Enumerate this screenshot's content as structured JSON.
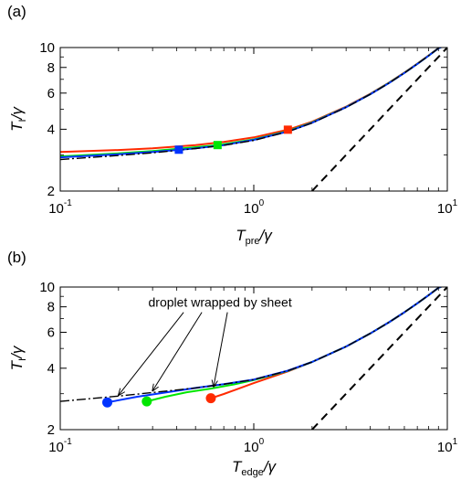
{
  "chart_data": [
    {
      "panel_label": "(a)",
      "type": "line",
      "xscale": "log",
      "yscale": "log",
      "xlim": [
        0.1,
        10
      ],
      "ylim": [
        2,
        10
      ],
      "xticks": [
        {
          "value": 0.1,
          "base": "10",
          "exp": "-1"
        },
        {
          "value": 1,
          "base": "10",
          "exp": "0"
        },
        {
          "value": 10,
          "base": "10",
          "exp": "1"
        }
      ],
      "yticks": [
        {
          "value": 2,
          "label": "2"
        },
        {
          "value": 4,
          "label": "4"
        },
        {
          "value": 6,
          "label": "6"
        },
        {
          "value": 8,
          "label": "8"
        },
        {
          "value": 10,
          "label": "10"
        }
      ],
      "xlabel": {
        "main": "T",
        "sub": "pre",
        "tail": "/γ"
      },
      "ylabel": {
        "main": "T",
        "sub": "I",
        "tail": "/γ"
      },
      "series": [
        {
          "color": "#ff2a00",
          "style": "solid",
          "marker": "square",
          "x": [
            0.1,
            0.2,
            0.3,
            0.5,
            0.7,
            1.0,
            1.5,
            2.0,
            3.0,
            4.0,
            5.0,
            6.0,
            7.0,
            8.0,
            9.0,
            10.0
          ],
          "y": [
            3.1,
            3.17,
            3.23,
            3.35,
            3.47,
            3.65,
            3.98,
            4.35,
            5.15,
            5.95,
            6.75,
            7.55,
            8.35,
            9.15,
            9.95,
            10.3
          ],
          "marker_point": [
            1.5,
            3.98
          ]
        },
        {
          "color": "#00e600",
          "style": "solid",
          "marker": "square",
          "x": [
            0.1,
            0.2,
            0.3,
            0.5,
            0.65,
            1.0,
            1.5,
            2.0,
            3.0,
            4.0,
            5.0,
            6.0,
            7.0,
            8.0,
            9.0,
            10.0
          ],
          "y": [
            2.95,
            3.05,
            3.13,
            3.27,
            3.35,
            3.57,
            3.92,
            4.32,
            5.13,
            5.93,
            6.73,
            7.53,
            8.33,
            9.13,
            9.93,
            10.3
          ],
          "marker_point": [
            0.65,
            3.35
          ]
        },
        {
          "color": "#0033ff",
          "style": "solid",
          "marker": "square",
          "x": [
            0.1,
            0.2,
            0.3,
            0.4,
            0.5,
            0.7,
            1.0,
            1.5,
            2.0,
            3.0,
            4.0,
            5.0,
            6.0,
            7.0,
            8.0,
            9.0,
            10.0
          ],
          "y": [
            2.92,
            3.02,
            3.1,
            3.17,
            3.23,
            3.35,
            3.55,
            3.9,
            4.3,
            5.12,
            5.92,
            6.72,
            7.52,
            8.32,
            9.12,
            9.92,
            10.3
          ],
          "marker_point": [
            0.41,
            3.18
          ]
        },
        {
          "color": "#000000",
          "style": "dashdot",
          "marker": "none",
          "x": [
            0.1,
            0.2,
            0.3,
            0.5,
            0.7,
            1.0,
            1.5,
            2.0,
            3.0,
            4.0,
            5.0,
            6.0,
            7.0,
            8.0,
            9.0,
            10.0
          ],
          "y": [
            2.85,
            2.98,
            3.07,
            3.22,
            3.34,
            3.53,
            3.89,
            4.29,
            5.11,
            5.92,
            6.72,
            7.52,
            8.32,
            9.12,
            9.92,
            10.3
          ]
        },
        {
          "color": "#000000",
          "style": "dashed",
          "marker": "none",
          "x": [
            2.0,
            10.0
          ],
          "y": [
            2.0,
            10.0
          ]
        }
      ]
    },
    {
      "panel_label": "(b)",
      "type": "line",
      "xscale": "log",
      "yscale": "log",
      "xlim": [
        0.1,
        10
      ],
      "ylim": [
        2,
        10
      ],
      "xticks": [
        {
          "value": 0.1,
          "base": "10",
          "exp": "-1"
        },
        {
          "value": 1,
          "base": "10",
          "exp": "0"
        },
        {
          "value": 10,
          "base": "10",
          "exp": "1"
        }
      ],
      "yticks": [
        {
          "value": 2,
          "label": "2"
        },
        {
          "value": 4,
          "label": "4"
        },
        {
          "value": 6,
          "label": "6"
        },
        {
          "value": 8,
          "label": "8"
        },
        {
          "value": 10,
          "label": "10"
        }
      ],
      "xlabel": {
        "main": "T",
        "sub": "edge",
        "tail": "/γ"
      },
      "ylabel": {
        "main": "T",
        "sub": "I",
        "tail": "/γ"
      },
      "annotation": {
        "text": "droplet wrapped by sheet",
        "text_at": [
          0.67,
          8.0
        ],
        "arrow_targets": [
          [
            0.2,
            2.95
          ],
          [
            0.3,
            3.1
          ],
          [
            0.62,
            3.25
          ]
        ]
      },
      "series": [
        {
          "color": "#ff2a00",
          "style": "solid",
          "marker": "circle",
          "x": [
            0.6,
            0.7,
            0.8,
            1.0,
            1.5,
            2.0,
            3.0,
            4.0,
            5.0,
            6.0,
            7.0,
            8.0,
            9.0,
            10.0
          ],
          "y": [
            2.85,
            2.99,
            3.13,
            3.38,
            3.86,
            4.29,
            5.11,
            5.92,
            6.72,
            7.52,
            8.32,
            9.12,
            9.92,
            10.3
          ],
          "marker_point": [
            0.6,
            2.85
          ]
        },
        {
          "color": "#00e600",
          "style": "solid",
          "marker": "circle",
          "x": [
            0.28,
            0.35,
            0.45,
            0.6,
            0.8,
            1.0,
            1.5,
            2.0,
            3.0,
            4.0,
            5.0,
            6.0,
            7.0,
            8.0,
            9.0,
            10.0
          ],
          "y": [
            2.75,
            2.9,
            3.05,
            3.18,
            3.34,
            3.5,
            3.88,
            4.29,
            5.11,
            5.92,
            6.72,
            7.52,
            8.32,
            9.12,
            9.92,
            10.3
          ],
          "marker_point": [
            0.28,
            2.75
          ]
        },
        {
          "color": "#0033ff",
          "style": "solid",
          "marker": "circle",
          "x": [
            0.175,
            0.25,
            0.35,
            0.5,
            0.7,
            1.0,
            1.5,
            2.0,
            3.0,
            4.0,
            5.0,
            6.0,
            7.0,
            8.0,
            9.0,
            10.0
          ],
          "y": [
            2.72,
            2.9,
            3.04,
            3.2,
            3.34,
            3.52,
            3.89,
            4.29,
            5.11,
            5.92,
            6.72,
            7.52,
            8.32,
            9.12,
            9.92,
            10.3
          ],
          "marker_point": [
            0.175,
            2.72
          ]
        },
        {
          "color": "#000000",
          "style": "dashdot",
          "marker": "none",
          "x": [
            0.1,
            0.2,
            0.3,
            0.5,
            0.7,
            1.0,
            1.5,
            2.0,
            3.0,
            4.0,
            5.0,
            6.0,
            7.0,
            8.0,
            9.0,
            10.0
          ],
          "y": [
            2.75,
            2.92,
            3.04,
            3.2,
            3.34,
            3.52,
            3.89,
            4.29,
            5.11,
            5.92,
            6.72,
            7.52,
            8.32,
            9.12,
            9.92,
            10.3
          ]
        },
        {
          "color": "#000000",
          "style": "dashed",
          "marker": "none",
          "x": [
            2.0,
            10.0
          ],
          "y": [
            2.0,
            10.0
          ]
        }
      ]
    }
  ]
}
